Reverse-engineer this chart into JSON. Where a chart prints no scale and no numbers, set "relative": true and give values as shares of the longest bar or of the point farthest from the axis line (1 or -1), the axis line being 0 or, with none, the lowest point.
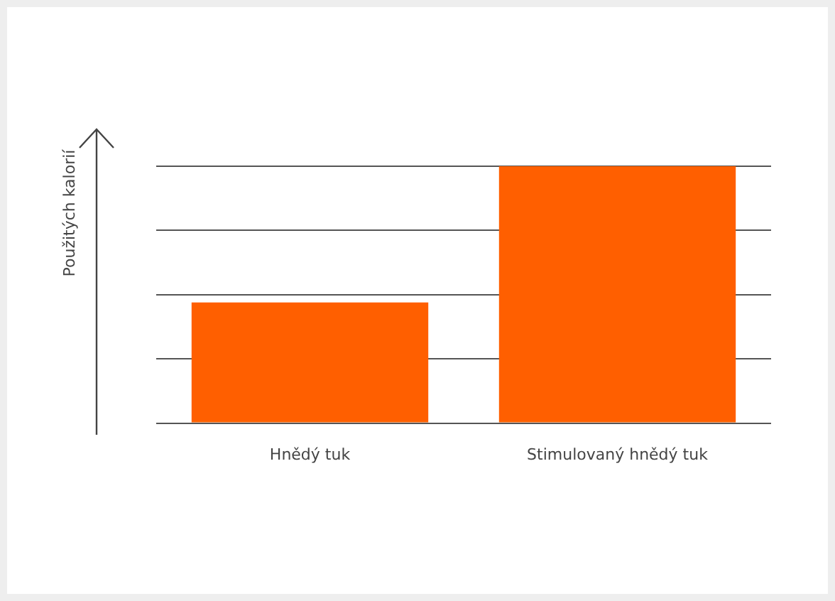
{
  "chart_data": {
    "type": "bar",
    "ylabel": "Použitých kalorií",
    "categories": [
      "Hnědý tuk",
      "Stimulovaný hnědý tuk"
    ],
    "values": [
      0.47,
      1
    ],
    "color": "#ff5f00",
    "relative": true,
    "grid": "y"
  }
}
